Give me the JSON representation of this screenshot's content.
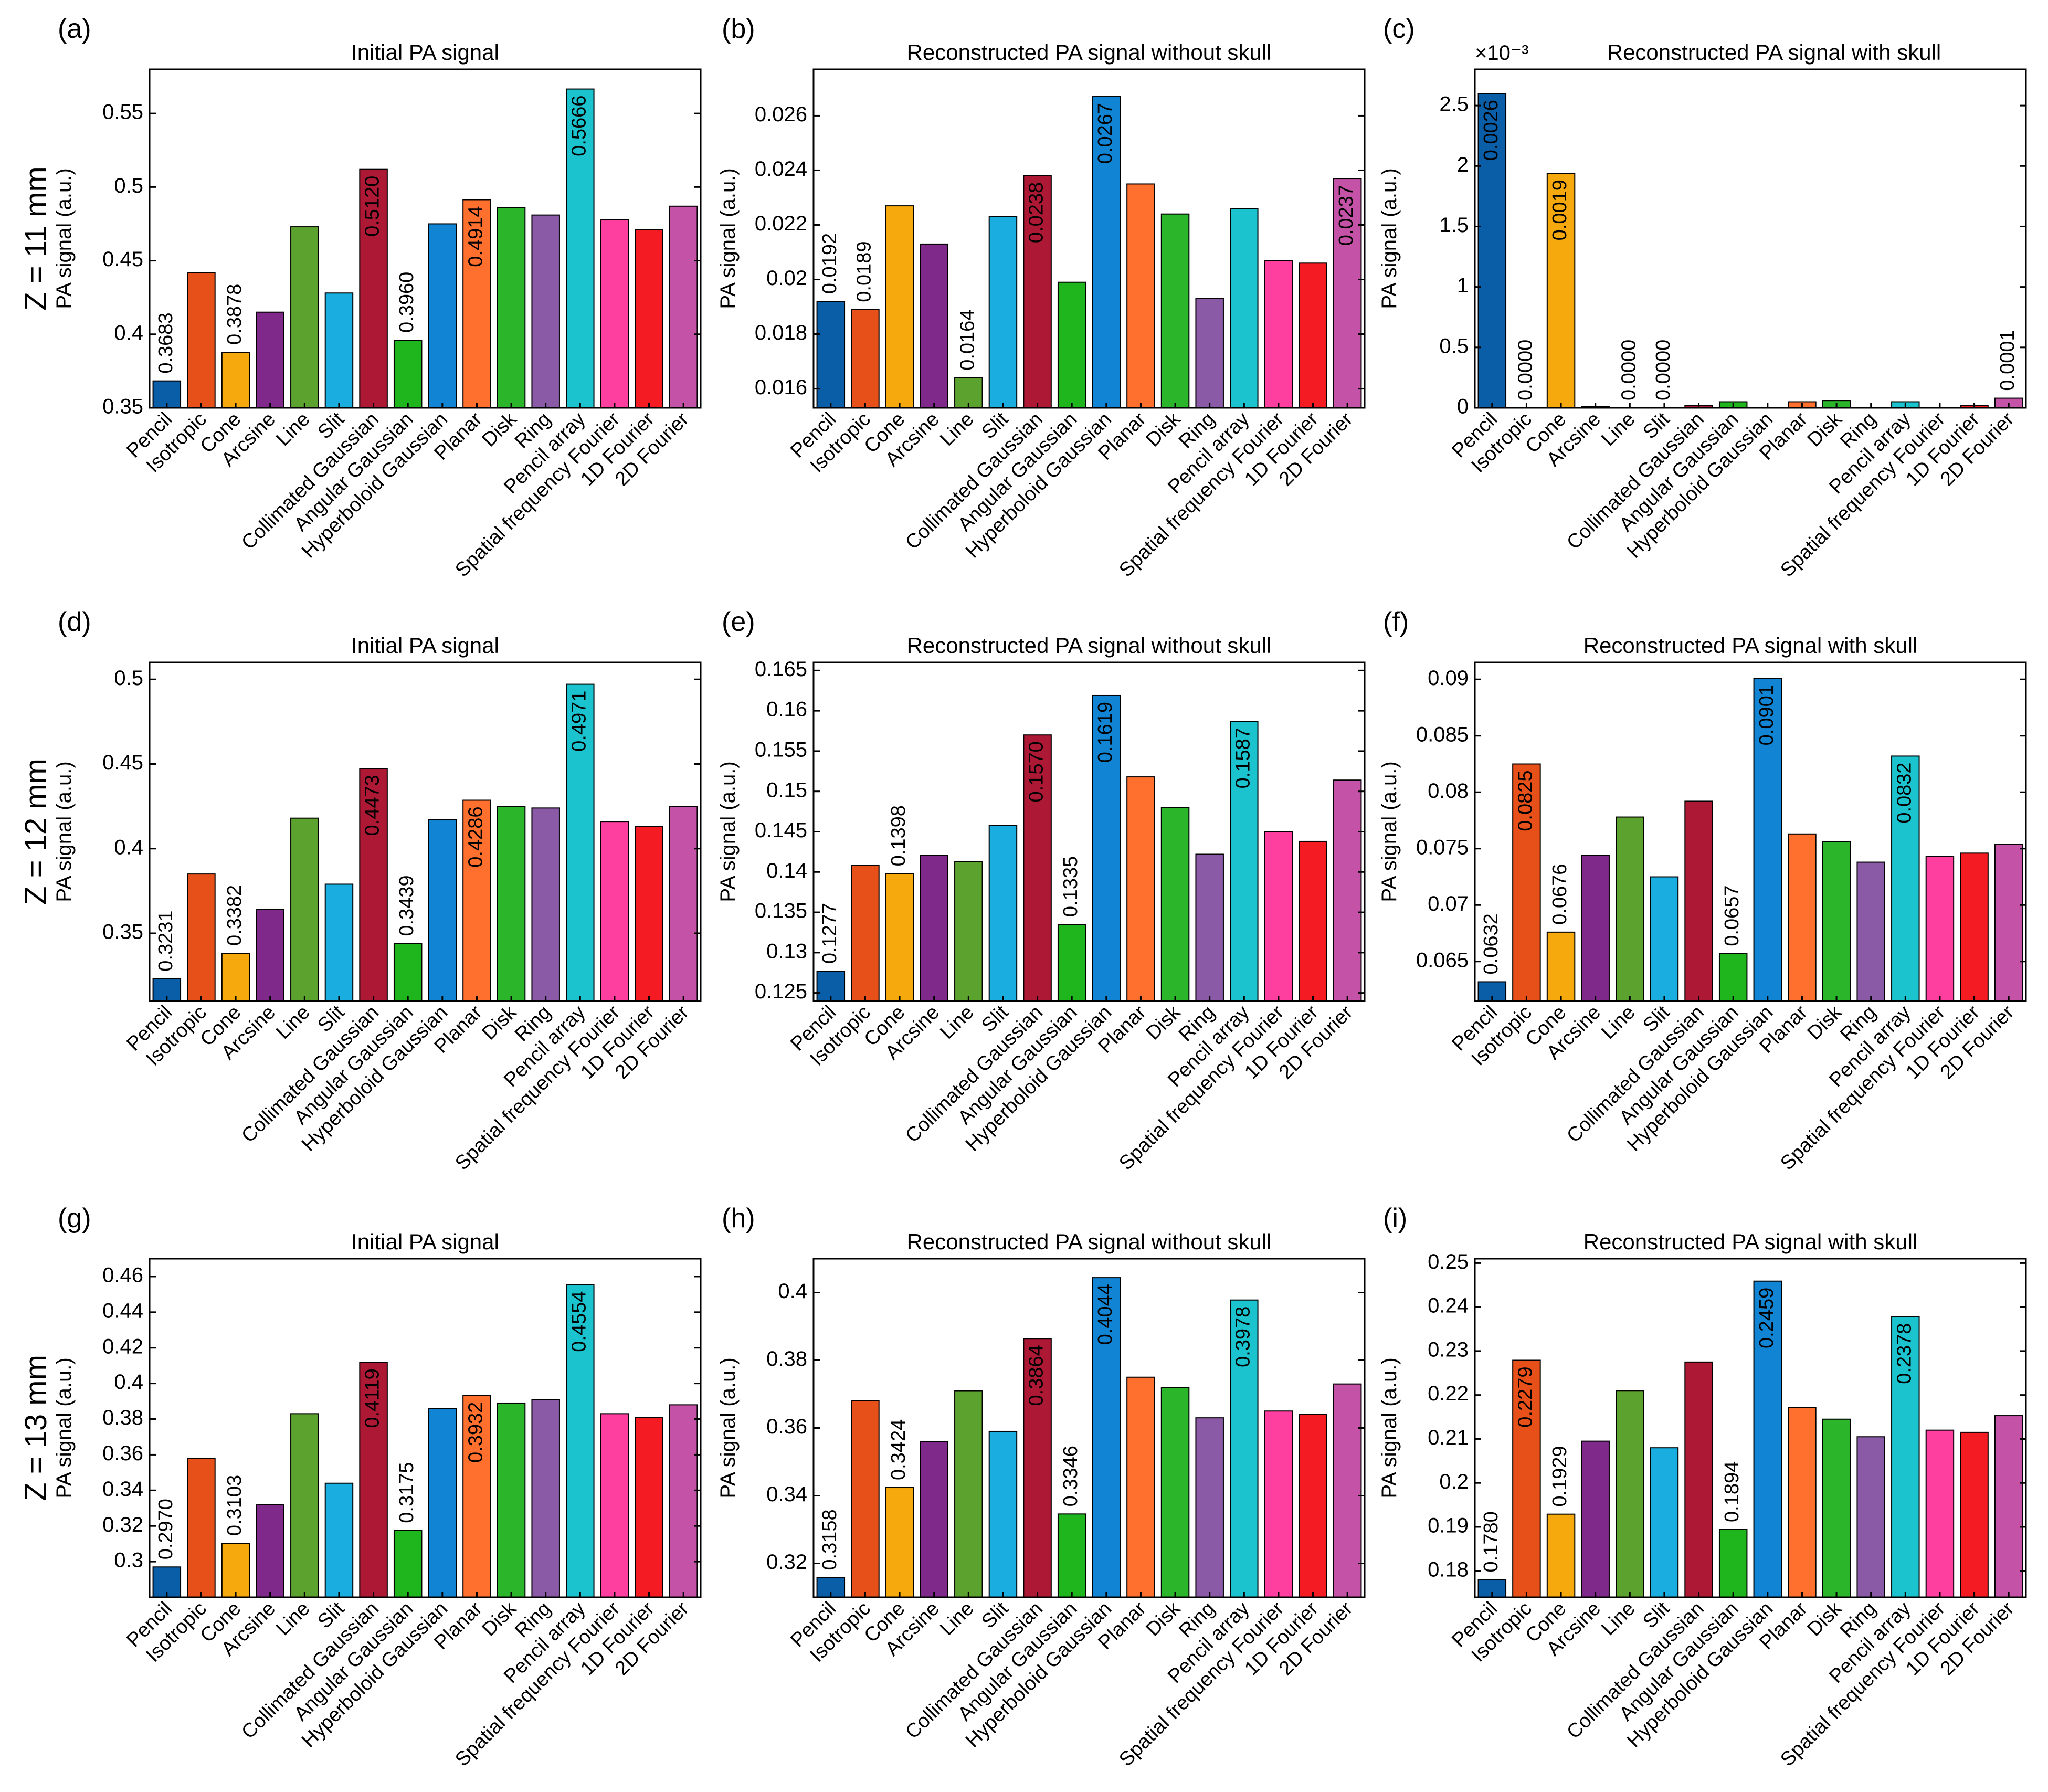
{
  "row_labels": [
    "Z = 11 mm",
    "Z = 12 mm",
    "Z = 13 mm"
  ],
  "ylabel": "PA signal (a.u.)",
  "categories": [
    "Pencil",
    "Isotropic",
    "Cone",
    "Arcsine",
    "Line",
    "Slit",
    "Collimated Gaussian",
    "Angular Gaussian",
    "Hyperboloid Gaussian",
    "Planar",
    "Disk",
    "Ring",
    "Pencil array",
    "Spatial frequency Fourier",
    "1D Fourier",
    "2D Fourier"
  ],
  "colors": [
    "#0a5ea8",
    "#e8501a",
    "#f5a90d",
    "#7f2a8a",
    "#5ca22f",
    "#1aaee0",
    "#ad1835",
    "#1fb51c",
    "#1185d4",
    "#ff6f2e",
    "#2bb52b",
    "#8b5aa6",
    "#1bc3cf",
    "#ff3fa0",
    "#f51b22",
    "#c452a7"
  ],
  "chart_data": [
    {
      "type": "bar",
      "panel_label": "(a)",
      "title": "Initial PA signal",
      "xlabel": "",
      "ylabel": "PA signal (a.u.)",
      "ylim": [
        0.35,
        0.58
      ],
      "yticks": [
        0.35,
        0.4,
        0.45,
        0.5,
        0.55
      ],
      "ytick_labels": [
        "0.35",
        "0.4",
        "0.45",
        "0.5",
        "0.55"
      ],
      "values": [
        0.3683,
        0.442,
        0.3878,
        0.415,
        0.473,
        0.428,
        0.512,
        0.396,
        0.475,
        0.4914,
        0.486,
        0.481,
        0.5666,
        0.478,
        0.471,
        0.487
      ],
      "annotations": [
        {
          "index": 0,
          "text": "0.3683",
          "pos": "above"
        },
        {
          "index": 2,
          "text": "0.3878",
          "pos": "above"
        },
        {
          "index": 6,
          "text": "0.5120",
          "pos": "inside"
        },
        {
          "index": 7,
          "text": "0.3960",
          "pos": "above"
        },
        {
          "index": 9,
          "text": "0.4914",
          "pos": "inside"
        },
        {
          "index": 12,
          "text": "0.5666",
          "pos": "inside"
        }
      ]
    },
    {
      "type": "bar",
      "panel_label": "(b)",
      "title": "Reconstructed PA signal without skull",
      "xlabel": "",
      "ylabel": "PA signal (a.u.)",
      "ylim": [
        0.0153,
        0.0277
      ],
      "yticks": [
        0.016,
        0.018,
        0.02,
        0.022,
        0.024,
        0.026
      ],
      "ytick_labels": [
        "0.016",
        "0.018",
        "0.02",
        "0.022",
        "0.024",
        "0.026"
      ],
      "values": [
        0.0192,
        0.0189,
        0.0227,
        0.0213,
        0.0164,
        0.0223,
        0.0238,
        0.0199,
        0.0267,
        0.0235,
        0.0224,
        0.0193,
        0.0226,
        0.0207,
        0.0206,
        0.0237
      ],
      "annotations": [
        {
          "index": 0,
          "text": "0.0192",
          "pos": "above"
        },
        {
          "index": 1,
          "text": "0.0189",
          "pos": "above"
        },
        {
          "index": 4,
          "text": "0.0164",
          "pos": "above"
        },
        {
          "index": 6,
          "text": "0.0238",
          "pos": "inside"
        },
        {
          "index": 8,
          "text": "0.0267",
          "pos": "inside"
        },
        {
          "index": 15,
          "text": "0.0237",
          "pos": "inside"
        }
      ]
    },
    {
      "type": "bar",
      "panel_label": "(c)",
      "title": "Reconstructed PA signal with skull",
      "xlabel": "",
      "ylabel": "PA signal (a.u.)",
      "exponent_label": "×10⁻³",
      "ylim": [
        0,
        2.8
      ],
      "yticks": [
        0,
        0.5,
        1,
        1.5,
        2,
        2.5
      ],
      "ytick_labels": [
        "0",
        "0.5",
        "1",
        "1.5",
        "2",
        "2.5"
      ],
      "values": [
        2.6,
        0.0,
        1.94,
        0.01,
        0.0,
        0.0,
        0.02,
        0.05,
        0.0,
        0.05,
        0.06,
        0.0,
        0.05,
        0.0,
        0.02,
        0.08
      ],
      "annotations": [
        {
          "index": 0,
          "text": "0.0026",
          "pos": "inside"
        },
        {
          "index": 1,
          "text": "0.0000",
          "pos": "above"
        },
        {
          "index": 2,
          "text": "0.0019",
          "pos": "inside"
        },
        {
          "index": 4,
          "text": "0.0000",
          "pos": "above"
        },
        {
          "index": 5,
          "text": "0.0000",
          "pos": "above"
        },
        {
          "index": 15,
          "text": "0.0001",
          "pos": "above"
        }
      ]
    },
    {
      "type": "bar",
      "panel_label": "(d)",
      "title": "Initial PA signal",
      "xlabel": "",
      "ylabel": "PA signal (a.u.)",
      "ylim": [
        0.31,
        0.51
      ],
      "yticks": [
        0.35,
        0.4,
        0.45,
        0.5
      ],
      "ytick_labels": [
        "0.35",
        "0.4",
        "0.45",
        "0.5"
      ],
      "values": [
        0.3231,
        0.385,
        0.3382,
        0.364,
        0.418,
        0.379,
        0.4473,
        0.3439,
        0.417,
        0.4286,
        0.425,
        0.424,
        0.4971,
        0.416,
        0.413,
        0.425
      ],
      "annotations": [
        {
          "index": 0,
          "text": "0.3231",
          "pos": "above"
        },
        {
          "index": 2,
          "text": "0.3382",
          "pos": "above"
        },
        {
          "index": 6,
          "text": "0.4473",
          "pos": "inside"
        },
        {
          "index": 7,
          "text": "0.3439",
          "pos": "above"
        },
        {
          "index": 9,
          "text": "0.4286",
          "pos": "inside"
        },
        {
          "index": 12,
          "text": "0.4971",
          "pos": "inside"
        }
      ]
    },
    {
      "type": "bar",
      "panel_label": "(e)",
      "title": "Reconstructed PA signal without skull",
      "xlabel": "",
      "ylabel": "PA signal (a.u.)",
      "ylim": [
        0.124,
        0.166
      ],
      "yticks": [
        0.125,
        0.13,
        0.135,
        0.14,
        0.145,
        0.15,
        0.155,
        0.16,
        0.165
      ],
      "ytick_labels": [
        "0.125",
        "0.13",
        "0.135",
        "0.14",
        "0.145",
        "0.15",
        "0.155",
        "0.16",
        "0.165"
      ],
      "values": [
        0.1277,
        0.1408,
        0.1398,
        0.1421,
        0.1413,
        0.1458,
        0.157,
        0.1335,
        0.1619,
        0.1518,
        0.148,
        0.1422,
        0.1587,
        0.145,
        0.1438,
        0.1514
      ],
      "annotations": [
        {
          "index": 0,
          "text": "0.1277",
          "pos": "above"
        },
        {
          "index": 2,
          "text": "0.1398",
          "pos": "above"
        },
        {
          "index": 6,
          "text": "0.1570",
          "pos": "inside"
        },
        {
          "index": 7,
          "text": "0.1335",
          "pos": "above"
        },
        {
          "index": 8,
          "text": "0.1619",
          "pos": "inside"
        },
        {
          "index": 12,
          "text": "0.1587",
          "pos": "inside"
        }
      ]
    },
    {
      "type": "bar",
      "panel_label": "(f)",
      "title": "Reconstructed PA signal with skull",
      "xlabel": "",
      "ylabel": "PA signal (a.u.)",
      "ylim": [
        0.0615,
        0.0915
      ],
      "yticks": [
        0.065,
        0.07,
        0.075,
        0.08,
        0.085,
        0.09
      ],
      "ytick_labels": [
        "0.065",
        "0.07",
        "0.075",
        "0.08",
        "0.085",
        "0.09"
      ],
      "values": [
        0.0632,
        0.0825,
        0.0676,
        0.0744,
        0.0778,
        0.0725,
        0.0792,
        0.0657,
        0.0901,
        0.0763,
        0.0756,
        0.0738,
        0.0832,
        0.0743,
        0.0746,
        0.0754
      ],
      "annotations": [
        {
          "index": 0,
          "text": "0.0632",
          "pos": "above"
        },
        {
          "index": 1,
          "text": "0.0825",
          "pos": "inside"
        },
        {
          "index": 2,
          "text": "0.0676",
          "pos": "above"
        },
        {
          "index": 7,
          "text": "0.0657",
          "pos": "above"
        },
        {
          "index": 8,
          "text": "0.0901",
          "pos": "inside"
        },
        {
          "index": 12,
          "text": "0.0832",
          "pos": "inside"
        }
      ]
    },
    {
      "type": "bar",
      "panel_label": "(g)",
      "title": "Initial PA signal",
      "xlabel": "",
      "ylabel": "PA signal (a.u.)",
      "ylim": [
        0.28,
        0.47
      ],
      "yticks": [
        0.3,
        0.32,
        0.34,
        0.36,
        0.38,
        0.4,
        0.42,
        0.44,
        0.46
      ],
      "ytick_labels": [
        "0.3",
        "0.32",
        "0.34",
        "0.36",
        "0.38",
        "0.4",
        "0.42",
        "0.44",
        "0.46"
      ],
      "values": [
        0.297,
        0.358,
        0.3103,
        0.332,
        0.383,
        0.344,
        0.4119,
        0.3175,
        0.386,
        0.3932,
        0.389,
        0.391,
        0.4554,
        0.383,
        0.381,
        0.388
      ],
      "annotations": [
        {
          "index": 0,
          "text": "0.2970",
          "pos": "above"
        },
        {
          "index": 2,
          "text": "0.3103",
          "pos": "above"
        },
        {
          "index": 6,
          "text": "0.4119",
          "pos": "inside"
        },
        {
          "index": 7,
          "text": "0.3175",
          "pos": "above"
        },
        {
          "index": 9,
          "text": "0.3932",
          "pos": "inside"
        },
        {
          "index": 12,
          "text": "0.4554",
          "pos": "inside"
        }
      ]
    },
    {
      "type": "bar",
      "panel_label": "(h)",
      "title": "Reconstructed PA signal without skull",
      "xlabel": "",
      "ylabel": "PA signal (a.u.)",
      "ylim": [
        0.31,
        0.41
      ],
      "yticks": [
        0.32,
        0.34,
        0.36,
        0.38,
        0.4
      ],
      "ytick_labels": [
        "0.32",
        "0.34",
        "0.36",
        "0.38",
        "0.4"
      ],
      "values": [
        0.3158,
        0.368,
        0.3424,
        0.356,
        0.371,
        0.359,
        0.3864,
        0.3346,
        0.4044,
        0.375,
        0.372,
        0.363,
        0.3978,
        0.365,
        0.364,
        0.373
      ],
      "annotations": [
        {
          "index": 0,
          "text": "0.3158",
          "pos": "above"
        },
        {
          "index": 2,
          "text": "0.3424",
          "pos": "above"
        },
        {
          "index": 6,
          "text": "0.3864",
          "pos": "inside"
        },
        {
          "index": 7,
          "text": "0.3346",
          "pos": "above"
        },
        {
          "index": 8,
          "text": "0.4044",
          "pos": "inside"
        },
        {
          "index": 12,
          "text": "0.3978",
          "pos": "inside"
        }
      ]
    },
    {
      "type": "bar",
      "panel_label": "(i)",
      "title": "Reconstructed PA signal with skull",
      "xlabel": "",
      "ylabel": "PA signal (a.u.)",
      "ylim": [
        0.174,
        0.251
      ],
      "yticks": [
        0.18,
        0.19,
        0.2,
        0.21,
        0.22,
        0.23,
        0.24,
        0.25
      ],
      "ytick_labels": [
        "0.18",
        "0.19",
        "0.2",
        "0.21",
        "0.22",
        "0.23",
        "0.24",
        "0.25"
      ],
      "values": [
        0.178,
        0.2279,
        0.1929,
        0.2095,
        0.221,
        0.208,
        0.2275,
        0.1894,
        0.2459,
        0.2172,
        0.2145,
        0.2105,
        0.2378,
        0.212,
        0.2115,
        0.2153
      ],
      "annotations": [
        {
          "index": 0,
          "text": "0.1780",
          "pos": "above"
        },
        {
          "index": 1,
          "text": "0.2279",
          "pos": "inside"
        },
        {
          "index": 2,
          "text": "0.1929",
          "pos": "above"
        },
        {
          "index": 7,
          "text": "0.1894",
          "pos": "above"
        },
        {
          "index": 8,
          "text": "0.2459",
          "pos": "inside"
        },
        {
          "index": 12,
          "text": "0.2378",
          "pos": "inside"
        }
      ]
    }
  ]
}
